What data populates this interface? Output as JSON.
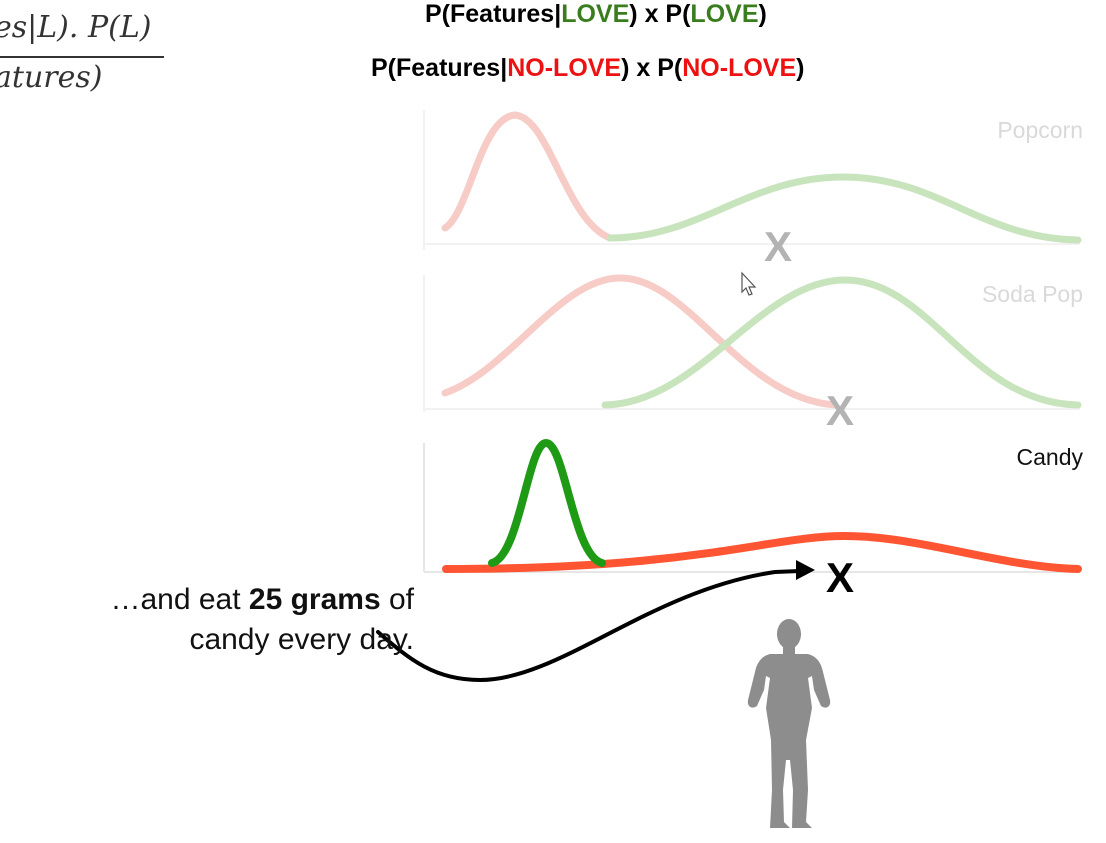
{
  "formula": {
    "numerator": "es|L). P(L)",
    "denominator": "atures)"
  },
  "header": {
    "line1": {
      "prefix": "P(Features|",
      "love": "LOVE",
      "mid": ") x P(",
      "love2": "LOVE",
      "suffix": ")"
    },
    "line2": {
      "prefix": "P(Features|",
      "nolove": "NO-LOVE",
      "mid": ") x P(",
      "nolove2": "NO-LOVE",
      "suffix": ")"
    }
  },
  "panels": [
    {
      "label": "Popcorn",
      "marker": "X"
    },
    {
      "label": "Soda Pop",
      "marker": "X"
    },
    {
      "label": "Candy",
      "marker": "X"
    }
  ],
  "caption": {
    "pre": "…and eat ",
    "bold": "25 grams",
    "post": " of",
    "line2": "candy every day."
  },
  "colors": {
    "love": "#1e9a14",
    "nolove": "#ff5533",
    "faded_love": "#c8e4bd",
    "faded_nolove": "#f7cbc6",
    "marker_faded": "#b3b3b3",
    "person": "#8d8d8d"
  }
}
